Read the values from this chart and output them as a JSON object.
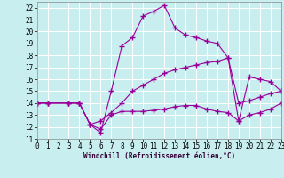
{
  "xlabel": "Windchill (Refroidissement éolien,°C)",
  "bg_color": "#c8eef0",
  "grid_color": "#ffffff",
  "line_color": "#990099",
  "xlim": [
    0,
    23
  ],
  "ylim": [
    11,
    22.5
  ],
  "xticks": [
    0,
    1,
    2,
    3,
    4,
    5,
    6,
    7,
    8,
    9,
    10,
    11,
    12,
    13,
    14,
    15,
    16,
    17,
    18,
    19,
    20,
    21,
    22,
    23
  ],
  "yticks": [
    11,
    12,
    13,
    14,
    15,
    16,
    17,
    18,
    19,
    20,
    21,
    22
  ],
  "line1_x": [
    0,
    1,
    3,
    4,
    5,
    6,
    7,
    8,
    9,
    10,
    11,
    12,
    13,
    14,
    15,
    16,
    17,
    18,
    19,
    20,
    21,
    22,
    23
  ],
  "line1_y": [
    14,
    14,
    14,
    14,
    12.2,
    11.5,
    15.0,
    18.8,
    19.5,
    21.3,
    21.7,
    22.2,
    20.3,
    19.7,
    19.5,
    19.2,
    19.0,
    17.8,
    12.5,
    16.2,
    16.0,
    15.8,
    15.0
  ],
  "line2_x": [
    0,
    1,
    3,
    4,
    5,
    6,
    7,
    8,
    9,
    10,
    11,
    12,
    13,
    14,
    15,
    16,
    17,
    18,
    19,
    20,
    21,
    22,
    23
  ],
  "line2_y": [
    14,
    14,
    14,
    14,
    12.2,
    12.5,
    13.2,
    14.0,
    15.0,
    15.5,
    16.0,
    16.5,
    16.8,
    17.0,
    17.2,
    17.4,
    17.5,
    17.8,
    14.0,
    14.2,
    14.5,
    14.8,
    15.0
  ],
  "line3_x": [
    0,
    1,
    3,
    4,
    5,
    6,
    7,
    8,
    9,
    10,
    11,
    12,
    13,
    14,
    15,
    16,
    17,
    18,
    19,
    20,
    21,
    22,
    23
  ],
  "line3_y": [
    14,
    14,
    14,
    14,
    12.2,
    11.8,
    13.0,
    13.3,
    13.3,
    13.3,
    13.4,
    13.5,
    13.7,
    13.8,
    13.8,
    13.5,
    13.3,
    13.2,
    12.5,
    13.0,
    13.2,
    13.5,
    14.0
  ],
  "marker_size": 4,
  "linewidth": 0.8,
  "tick_fontsize": 5.5,
  "xlabel_fontsize": 5.5
}
